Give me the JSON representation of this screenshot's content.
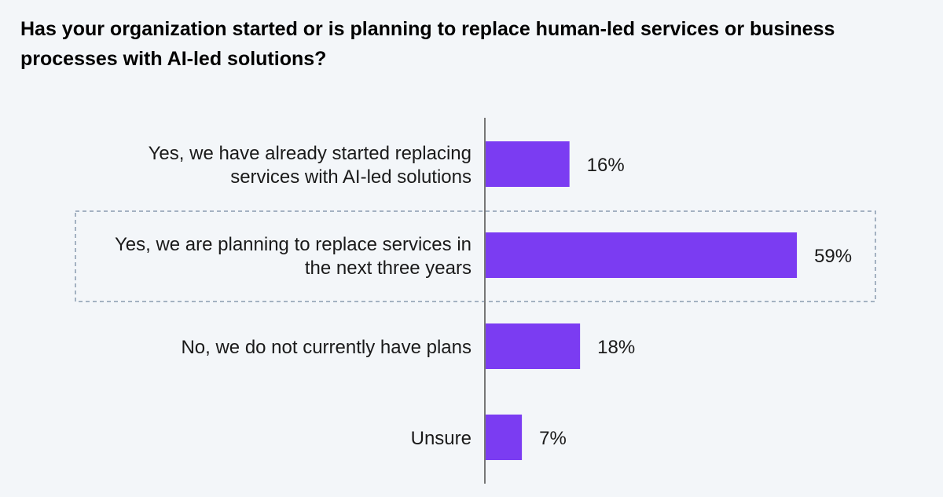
{
  "chart_data": {
    "type": "bar",
    "orientation": "horizontal",
    "title": "Has your organization started or is planning to replace human-led services or business processes with AI-led solutions?",
    "categories": [
      [
        "Yes, we have already started replacing",
        "services with AI-led solutions"
      ],
      [
        "Yes, we are planning to replace services in",
        "the next three years"
      ],
      [
        "No, we do not currently have plans"
      ],
      [
        "Unsure"
      ]
    ],
    "values": [
      16,
      59,
      18,
      7
    ],
    "value_labels": [
      "16%",
      "59%",
      "18%",
      "7%"
    ],
    "highlighted_index": 1,
    "xlim": [
      0,
      100
    ],
    "grid": false
  },
  "colors": {
    "bar": "#7b3cf2",
    "axis": "#777777",
    "highlight_border": "#8a9bb0",
    "background": "#f3f6f9"
  }
}
